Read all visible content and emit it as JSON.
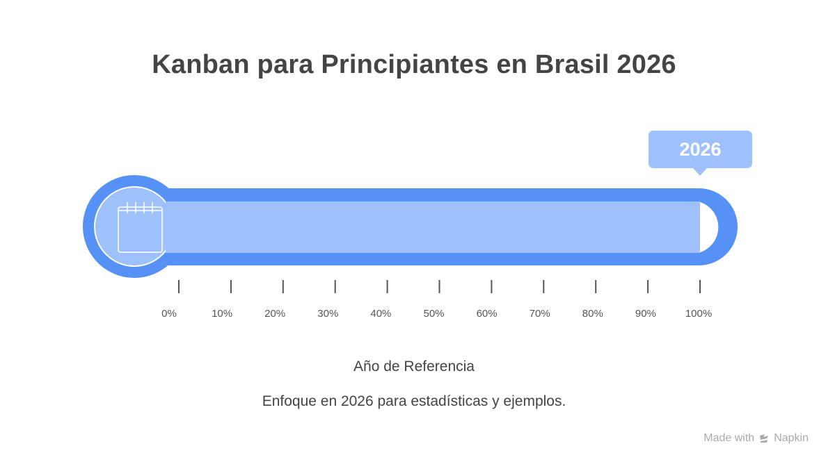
{
  "title": "Kanban para Principiantes en Brasil 2026",
  "gauge": {
    "value_percent": 100,
    "callout_label": "2026",
    "ticks": [
      "0%",
      "10%",
      "20%",
      "30%",
      "40%",
      "50%",
      "60%",
      "70%",
      "80%",
      "90%",
      "100%"
    ],
    "icon": "calendar-icon",
    "colors": {
      "outline": "#5691f5",
      "fill": "#9ec1fb",
      "callout": "#9ec1fb"
    }
  },
  "caption": {
    "title": "Año de Referencia",
    "description": "Enfoque en 2026 para estadísticas y ejemplos."
  },
  "watermark": {
    "made_with": "Made with",
    "brand": "Napkin",
    "icon": "napkin-logo-icon"
  }
}
